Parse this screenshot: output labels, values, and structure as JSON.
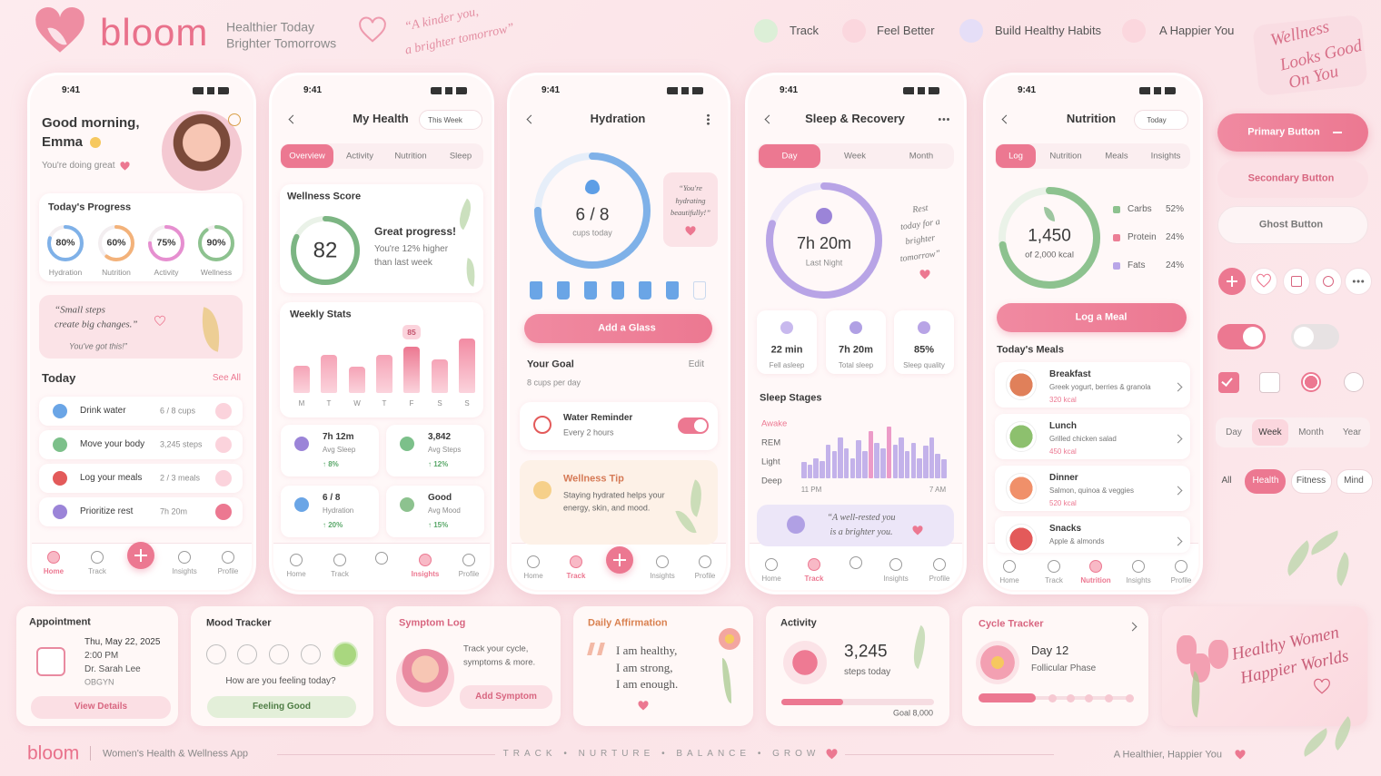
{
  "header": {
    "brand": "bloom",
    "tagline": [
      "Healthier Today",
      "Brighter Tomorrows"
    ],
    "script_quote": [
      "“A kinder you,",
      "a brighter tomorrow”"
    ],
    "nav": [
      "Track",
      "Feel Better",
      "Build Healthy Habits",
      "A Happier You"
    ],
    "badge": [
      "Wellness",
      "Looks Good",
      "On You"
    ]
  },
  "status_time": "9:41",
  "home_screen": {
    "greeting": "Good morning,",
    "name": "Emma",
    "subtitle": "You're doing great",
    "progress_title": "Today's Progress",
    "rings": [
      {
        "value": "80%",
        "label": "Hydration"
      },
      {
        "value": "60%",
        "label": "Nutrition"
      },
      {
        "value": "75%",
        "label": "Activity"
      },
      {
        "value": "90%",
        "label": "Wellness"
      }
    ],
    "quote": [
      "“Small steps",
      "create big changes.”"
    ],
    "quote_note": "You've got this!”",
    "section_title": "Today",
    "see_all": "See All",
    "tasks": [
      {
        "label": "Drink water",
        "value": "6 / 8 cups"
      },
      {
        "label": "Move your body",
        "value": "3,245 steps"
      },
      {
        "label": "Log your meals",
        "value": "2 / 3 meals"
      },
      {
        "label": "Prioritize rest",
        "value": "7h 20m"
      }
    ],
    "nav": [
      "Home",
      "Track",
      "Insights",
      "Profile"
    ]
  },
  "health_screen": {
    "title": "My Health",
    "period": "This Week",
    "tabs": [
      "Overview",
      "Activity",
      "Nutrition",
      "Sleep"
    ],
    "score_title": "Wellness Score",
    "score": 82,
    "message": "Great progress!",
    "detail": [
      "You're 12% higher",
      "than last week"
    ],
    "weekly_title": "Weekly Stats",
    "weekly": {
      "type": "bar",
      "categories": [
        "M",
        "T",
        "W",
        "T",
        "F",
        "S",
        "S"
      ],
      "values": [
        50,
        70,
        48,
        70,
        85,
        62,
        100
      ],
      "color": "#f5a3b6"
    },
    "stats": [
      {
        "value": "7h 12m",
        "label": "Avg Sleep",
        "change": "↑ 8%"
      },
      {
        "value": "3,842",
        "label": "Avg Steps",
        "change": "↑ 12%"
      },
      {
        "value": "6 / 8",
        "label": "Hydration",
        "change": "↑ 20%"
      },
      {
        "value": "Good",
        "label": "Avg Mood",
        "change": "↑ 15%"
      }
    ],
    "nav": [
      "Home",
      "Track",
      "Insights",
      "Profile"
    ]
  },
  "hydration_screen": {
    "title": "Hydration",
    "count": "6 / 8",
    "count_label": "cups today",
    "note": [
      "“You're",
      "hydrating",
      "beautifully!”"
    ],
    "button": "Add a Glass",
    "goal_title": "Your Goal",
    "edit": "Edit",
    "goal": "8 cups per day",
    "reminder_title": "Water Reminder",
    "reminder": "Every 2 hours",
    "tip_title": "Wellness Tip",
    "tip": [
      "Staying hydrated helps your",
      "energy, skin, and mood."
    ],
    "nav": [
      "Home",
      "Track",
      "Insights",
      "Profile"
    ]
  },
  "sleep_screen": {
    "title": "Sleep & Recovery",
    "tabs": [
      "Day",
      "Week",
      "Month"
    ],
    "duration": "7h 20m",
    "duration_label": "Last Night",
    "note": [
      "Rest",
      "today for a",
      "brighter",
      "tomorrow”"
    ],
    "stats": [
      {
        "value": "22 min",
        "label": "Fell asleep"
      },
      {
        "value": "7h 20m",
        "label": "Total sleep"
      },
      {
        "value": "85%",
        "label": "Sleep quality"
      }
    ],
    "stages_title": "Sleep Stages",
    "stages": [
      "Awake",
      "REM",
      "Light",
      "Deep"
    ],
    "timeline": {
      "values": [
        1.2,
        1.0,
        1.5,
        1.3,
        2.5,
        2.0,
        3.0,
        2.2,
        1.5,
        2.8,
        2.0,
        3.5,
        2.6,
        2.2,
        3.8,
        2.5,
        3.0,
        2.0,
        2.6,
        1.5,
        2.4,
        3.0,
        1.8,
        1.4
      ],
      "start": "11 PM",
      "end": "7 AM"
    },
    "quote": [
      "“A well-rested you",
      "is a brighter you."
    ],
    "nav": [
      "Home",
      "Track",
      "Insights",
      "Profile"
    ]
  },
  "nutrition_screen": {
    "title": "Nutrition",
    "period": "Today",
    "tabs": [
      "Log",
      "Nutrition",
      "Meals",
      "Insights"
    ],
    "calories": "1,450",
    "calories_label": "of 2,000 kcal",
    "macros": [
      {
        "name": "Carbs",
        "value": "52%",
        "color": "#8dc28f"
      },
      {
        "name": "Protein",
        "value": "24%",
        "color": "#ec7f96"
      },
      {
        "name": "Fats",
        "value": "24%",
        "color": "#b9a6e8"
      }
    ],
    "button": "Log a Meal",
    "meals_title": "Today's Meals",
    "meals": [
      {
        "name": "Breakfast",
        "detail": "Greek yogurt, berries & granola",
        "kcal": "320 kcal"
      },
      {
        "name": "Lunch",
        "detail": "Grilled chicken salad",
        "kcal": "450 kcal"
      },
      {
        "name": "Dinner",
        "detail": "Salmon, quinoa & veggies",
        "kcal": "520 kcal"
      },
      {
        "name": "Snacks",
        "detail": "Apple & almonds"
      }
    ],
    "nav": [
      "Home",
      "Track",
      "Nutrition",
      "Insights",
      "Profile"
    ]
  },
  "components": {
    "buttons": [
      "Primary Button",
      "Secondary Button",
      "Ghost Button"
    ],
    "segments": [
      "Day",
      "Week",
      "Month",
      "Year"
    ],
    "chips": [
      "All",
      "Health",
      "Fitness",
      "Mind"
    ]
  },
  "cards": {
    "appointment": {
      "title": "Appointment",
      "date": "Thu, May 22, 2025",
      "time": "2:00 PM",
      "doctor": "Dr. Sarah Lee",
      "specialty": "OBGYN",
      "button": "View Details"
    },
    "mood": {
      "title": "Mood Tracker",
      "question": "How are you feeling today?",
      "button": "Feeling Good"
    },
    "symptom": {
      "title": "Symptom Log",
      "text": [
        "Track your cycle,",
        "symptoms & more."
      ],
      "button": "Add Symptom"
    },
    "affirmation": {
      "title": "Daily Affirmation",
      "lines": [
        "I am healthy,",
        "I am strong,",
        "I am enough."
      ]
    },
    "activity": {
      "title": "Activity",
      "steps": "3,245",
      "steps_label": "steps today",
      "goal": "Goal 8,000"
    },
    "cycle": {
      "title": "Cycle Tracker",
      "day": "Day 12",
      "phase": "Follicular Phase"
    },
    "banner": [
      "Healthy Women",
      "Happier Worlds"
    ]
  },
  "footer": {
    "brand": "bloom",
    "subtitle": "Women's Health & Wellness App",
    "motto": "TRACK • NURTURE • BALANCE • GROW",
    "slogan": "A Healthier, Happier You"
  }
}
